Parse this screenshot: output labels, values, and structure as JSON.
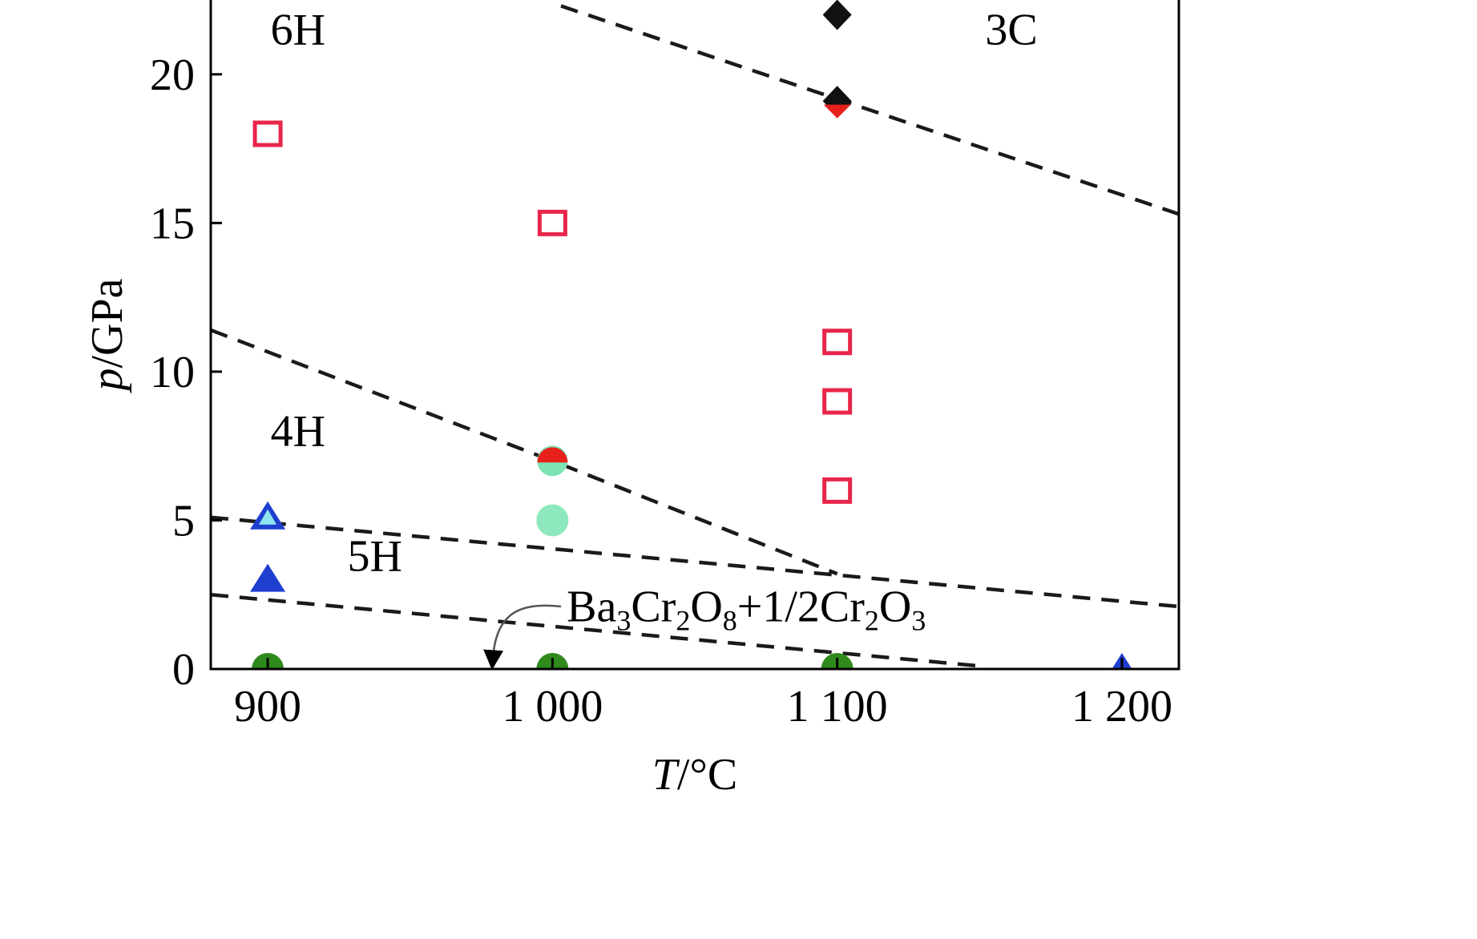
{
  "chart_data": {
    "type": "scatter",
    "title": "",
    "xlabel_italic": "T",
    "xlabel_rest": "/°C",
    "ylabel_italic": "p",
    "ylabel_rest": "/GPa",
    "xlim": [
      880,
      1220
    ],
    "ylim": [
      0,
      22.5
    ],
    "x_ticks": [
      900,
      1000,
      1100,
      1200
    ],
    "x_tick_labels": [
      "900",
      "1 000",
      "1 100",
      "1 200"
    ],
    "y_ticks": [
      0,
      5,
      10,
      15,
      20
    ],
    "y_tick_labels": [
      "0",
      "5",
      "10",
      "15",
      "20"
    ],
    "grid": false,
    "regions": [
      {
        "label": "6H",
        "x": 901,
        "y": 21
      },
      {
        "label": "3C",
        "x": 1152,
        "y": 21
      },
      {
        "label": "4H",
        "x": 901,
        "y": 7.5
      },
      {
        "label": "5H",
        "x": 928,
        "y": 3.3
      }
    ],
    "annotation": {
      "parts": [
        {
          "text": "Ba",
          "sub": false
        },
        {
          "text": "3",
          "sub": true
        },
        {
          "text": "Cr",
          "sub": false
        },
        {
          "text": "2",
          "sub": true
        },
        {
          "text": "O",
          "sub": false
        },
        {
          "text": "8",
          "sub": true
        },
        {
          "text": "+1/2Cr",
          "sub": false
        },
        {
          "text": "2",
          "sub": true
        },
        {
          "text": "O",
          "sub": false
        },
        {
          "text": "3",
          "sub": true
        }
      ],
      "x": 1005,
      "y": 1.6,
      "arrow_from": [
        1003,
        2.1
      ],
      "arrow_to": [
        979,
        0.3
      ]
    },
    "boundaries": [
      {
        "name": "6H-3C boundary",
        "points": [
          [
            1003,
            22.3
          ],
          [
            1220,
            15.3
          ]
        ]
      },
      {
        "name": "6H-4H boundary",
        "points": [
          [
            880,
            11.4
          ],
          [
            1000,
            7.0
          ],
          [
            1100,
            3.2
          ]
        ]
      },
      {
        "name": "4H-5H boundary",
        "points": [
          [
            880,
            5.1
          ],
          [
            1220,
            2.1
          ]
        ]
      },
      {
        "name": "5H-Ba3Cr2O8 boundary",
        "points": [
          [
            880,
            2.5
          ],
          [
            1150,
            0.1
          ]
        ]
      }
    ],
    "series": [
      {
        "name": "open square",
        "marker": "square-open",
        "color": "#e8254a",
        "points": [
          [
            900,
            18
          ],
          [
            1000,
            15
          ],
          [
            1100,
            11
          ],
          [
            1100,
            9
          ],
          [
            1100,
            6
          ]
        ]
      },
      {
        "name": "black diamond",
        "marker": "diamond",
        "color": "#111111",
        "points": [
          [
            1100,
            22
          ],
          [
            1100,
            19.1
          ]
        ]
      },
      {
        "name": "red half diamond",
        "marker": "half-diamond",
        "color": "#e8201c",
        "points": [
          [
            1100,
            18.9
          ]
        ]
      },
      {
        "name": "red-green circle",
        "marker": "half-circle",
        "color": "#e8201c",
        "color2": "#7de3b4",
        "points": [
          [
            1000,
            7
          ]
        ]
      },
      {
        "name": "green circle",
        "marker": "circle",
        "color": "#8ee8be",
        "points": [
          [
            1000,
            5
          ]
        ]
      },
      {
        "name": "light triangle",
        "marker": "triangle-light",
        "color": "#1f3fd0",
        "color2": "#8fe6f0",
        "points": [
          [
            900,
            5.1
          ]
        ]
      },
      {
        "name": "blue triangle",
        "marker": "triangle",
        "color": "#1f3fd0",
        "points": [
          [
            900,
            3
          ],
          [
            1200,
            0
          ]
        ]
      },
      {
        "name": "dark green circle",
        "marker": "circle",
        "color": "#2f8a1c",
        "points": [
          [
            900,
            0
          ],
          [
            1000,
            0
          ],
          [
            1100,
            0
          ]
        ]
      }
    ]
  }
}
